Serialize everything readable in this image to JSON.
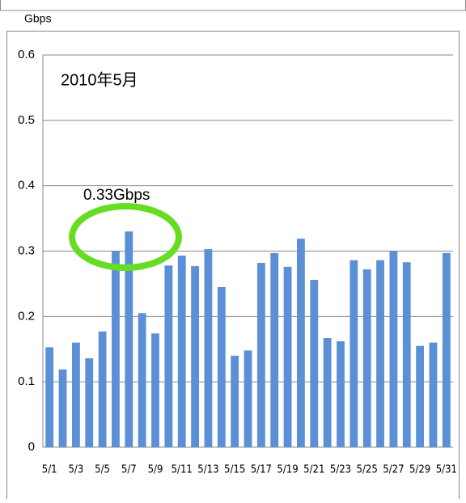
{
  "chart_data": {
    "type": "bar",
    "y_label": "Gbps",
    "annotations": [
      "2010年5月",
      "0.33Gbps"
    ],
    "categories": [
      "5/1",
      null,
      "5/3",
      null,
      "5/5",
      null,
      "5/7",
      null,
      "5/9",
      null,
      "5/11",
      null,
      "5/13",
      null,
      "5/15",
      null,
      "5/17",
      null,
      "5/19",
      null,
      "5/21",
      null,
      "5/23",
      null,
      "5/25",
      null,
      "5/27",
      null,
      "5/29",
      null,
      "5/31"
    ],
    "values": [
      0.153,
      0.119,
      0.16,
      0.136,
      0.177,
      0.3,
      0.33,
      0.205,
      0.174,
      0.278,
      0.293,
      0.277,
      0.303,
      0.245,
      0.14,
      0.148,
      0.282,
      0.297,
      0.276,
      0.319,
      0.256,
      0.167,
      0.162,
      0.286,
      0.272,
      0.286,
      0.3,
      0.283,
      0.155,
      0.16,
      0.297
    ],
    "color": "#5b8fd6",
    "ylim": [
      0,
      0.6
    ],
    "yticks": [
      0,
      0.1,
      0.2,
      0.3,
      0.4,
      0.5,
      0.6
    ],
    "grid": true
  }
}
